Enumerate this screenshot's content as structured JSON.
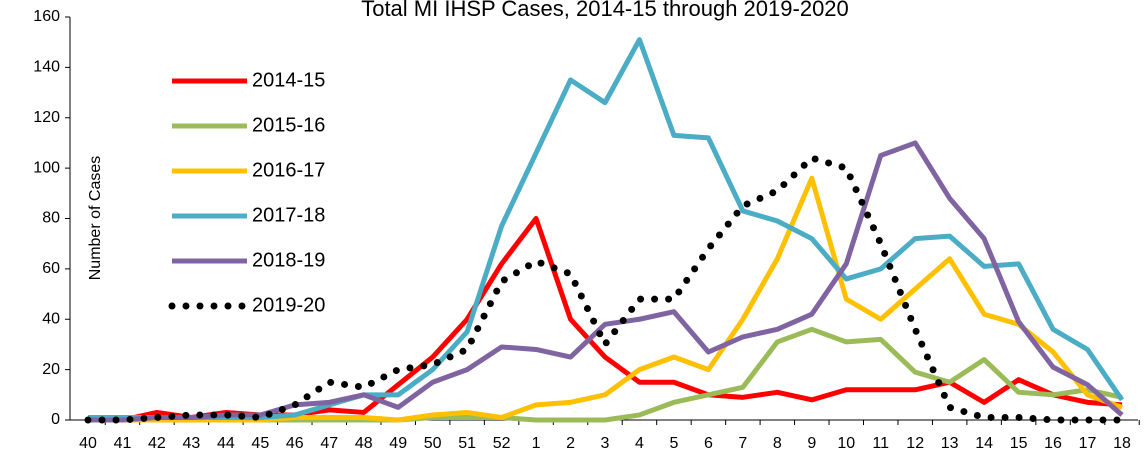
{
  "chart_data": {
    "type": "line",
    "title": "Total MI IHSP Cases, 2014-15 through 2019-2020",
    "y_label": "Number of Cases",
    "categories": [
      "40",
      "41",
      "42",
      "43",
      "44",
      "45",
      "46",
      "47",
      "48",
      "49",
      "50",
      "51",
      "52",
      "1",
      "2",
      "3",
      "4",
      "5",
      "6",
      "7",
      "8",
      "9",
      "10",
      "11",
      "12",
      "13",
      "14",
      "15",
      "16",
      "17",
      "18"
    ],
    "ylim": [
      0,
      160
    ],
    "yticks": [
      0,
      20,
      40,
      60,
      80,
      100,
      120,
      140,
      160
    ],
    "grid": false,
    "legend": "upper left",
    "series": [
      {
        "name": "2014-15",
        "color": "#ff0000",
        "style": "solid",
        "values": [
          0,
          0,
          3,
          1,
          3,
          2,
          2,
          4,
          3,
          14,
          25,
          40,
          62,
          80,
          40,
          25,
          15,
          15,
          10,
          9,
          11,
          8,
          12,
          12,
          12,
          15,
          7,
          16,
          10,
          7,
          6
        ]
      },
      {
        "name": "2015-16",
        "color": "#9bbb59",
        "style": "solid",
        "values": [
          0,
          0,
          0,
          0,
          0,
          0,
          0,
          0,
          0,
          0,
          1,
          1,
          1,
          0,
          0,
          0,
          2,
          7,
          10,
          13,
          31,
          36,
          31,
          32,
          19,
          15,
          24,
          11,
          10,
          12,
          9
        ]
      },
      {
        "name": "2016-17",
        "color": "#ffc000",
        "style": "solid",
        "values": [
          0,
          0,
          0,
          0,
          0,
          0,
          1,
          1,
          1,
          0,
          2,
          3,
          1,
          6,
          7,
          10,
          20,
          25,
          20,
          40,
          64,
          96,
          48,
          40,
          52,
          64,
          42,
          38,
          27,
          10,
          5
        ]
      },
      {
        "name": "2017-18",
        "color": "#4bacc6",
        "style": "solid",
        "values": [
          1,
          1,
          1,
          1,
          1,
          1,
          2,
          6,
          10,
          10,
          20,
          35,
          77,
          106,
          135,
          126,
          151,
          113,
          112,
          83,
          79,
          72,
          56,
          60,
          72,
          73,
          61,
          62,
          36,
          28,
          8
        ]
      },
      {
        "name": "2018-19",
        "color": "#8064a2",
        "style": "solid",
        "values": [
          0,
          0,
          1,
          1,
          2,
          2,
          6,
          7,
          10,
          5,
          15,
          20,
          29,
          28,
          25,
          38,
          40,
          43,
          27,
          33,
          36,
          42,
          62,
          105,
          110,
          88,
          72,
          39,
          21,
          14,
          2
        ]
      },
      {
        "name": "2019-20",
        "color": "#000000",
        "style": "dotted",
        "values": [
          0,
          0,
          1,
          2,
          2,
          1,
          6,
          15,
          13,
          20,
          22,
          28,
          55,
          63,
          58,
          30,
          48,
          48,
          68,
          85,
          91,
          104,
          100,
          70,
          36,
          5,
          1,
          1,
          0,
          0,
          0
        ]
      }
    ]
  }
}
